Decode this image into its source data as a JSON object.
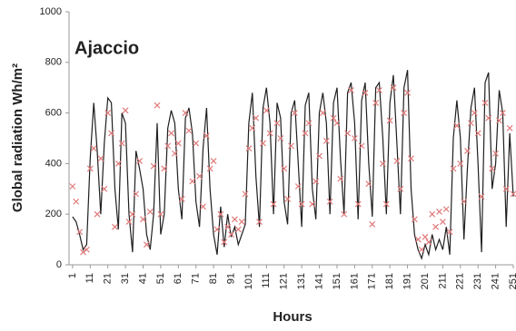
{
  "chart_data": {
    "type": "line",
    "title": "Ajaccio",
    "xlabel": "Hours",
    "ylabel": "Global radiation Wh/m²",
    "x": [
      1,
      3,
      5,
      7,
      9,
      11,
      13,
      15,
      17,
      19,
      21,
      23,
      25,
      27,
      29,
      31,
      33,
      35,
      37,
      39,
      41,
      43,
      45,
      47,
      49,
      51,
      53,
      55,
      57,
      59,
      61,
      63,
      65,
      67,
      69,
      71,
      73,
      75,
      77,
      79,
      81,
      83,
      85,
      87,
      89,
      91,
      93,
      95,
      97,
      99,
      101,
      103,
      105,
      107,
      109,
      111,
      113,
      115,
      117,
      119,
      121,
      123,
      125,
      127,
      129,
      131,
      133,
      135,
      137,
      139,
      141,
      143,
      145,
      147,
      149,
      151,
      153,
      155,
      157,
      159,
      161,
      163,
      165,
      167,
      169,
      171,
      173,
      175,
      177,
      179,
      181,
      183,
      185,
      187,
      189,
      191,
      193,
      195,
      197,
      199,
      201,
      203,
      205,
      207,
      209,
      211,
      213,
      215,
      217,
      219,
      221,
      223,
      225,
      227,
      229,
      231,
      233,
      235,
      237,
      239,
      241,
      243,
      245,
      247,
      249,
      251
    ],
    "series": [
      {
        "style": "line",
        "color": "#1f1f1f",
        "values": [
          190,
          170,
          120,
          60,
          80,
          420,
          640,
          450,
          200,
          480,
          660,
          640,
          300,
          140,
          600,
          560,
          200,
          50,
          450,
          380,
          300,
          120,
          60,
          200,
          560,
          120,
          200,
          540,
          610,
          560,
          300,
          180,
          580,
          620,
          520,
          250,
          150,
          460,
          620,
          300,
          120,
          40,
          230,
          70,
          200,
          110,
          150,
          80,
          120,
          160,
          560,
          680,
          350,
          150,
          620,
          700,
          560,
          200,
          640,
          580,
          250,
          160,
          600,
          650,
          400,
          150,
          630,
          680,
          300,
          180,
          600,
          680,
          560,
          200,
          640,
          700,
          420,
          200,
          680,
          720,
          560,
          180,
          650,
          720,
          400,
          190,
          700,
          720,
          500,
          200,
          640,
          750,
          480,
          200,
          700,
          770,
          300,
          120,
          60,
          25,
          80,
          40,
          120,
          60,
          100,
          60,
          150,
          40,
          500,
          650,
          500,
          100,
          380,
          620,
          700,
          400,
          50,
          720,
          760,
          300,
          400,
          690,
          600,
          150,
          520,
          270
        ]
      },
      {
        "style": "marker",
        "color": "#e07a7a",
        "values": [
          310,
          250,
          130,
          50,
          60,
          380,
          460,
          200,
          420,
          300,
          600,
          520,
          150,
          400,
          480,
          610,
          170,
          200,
          280,
          410,
          180,
          80,
          210,
          390,
          630,
          200,
          380,
          470,
          520,
          440,
          480,
          260,
          600,
          530,
          330,
          480,
          350,
          230,
          510,
          380,
          410,
          140,
          200,
          90,
          150,
          120,
          180,
          140,
          170,
          280,
          460,
          540,
          580,
          170,
          480,
          610,
          520,
          240,
          560,
          500,
          380,
          260,
          470,
          600,
          310,
          240,
          520,
          560,
          240,
          330,
          430,
          600,
          490,
          250,
          580,
          560,
          340,
          200,
          520,
          690,
          500,
          240,
          470,
          680,
          320,
          160,
          640,
          690,
          400,
          240,
          570,
          700,
          410,
          300,
          600,
          680,
          420,
          180,
          100,
          60,
          110,
          90,
          200,
          150,
          210,
          170,
          220,
          130,
          380,
          550,
          400,
          250,
          450,
          560,
          600,
          520,
          270,
          640,
          580,
          380,
          440,
          570,
          600,
          300,
          540,
          280
        ]
      }
    ],
    "xlim": [
      -1,
      251
    ],
    "xticks": [
      1,
      11,
      21,
      31,
      41,
      51,
      61,
      71,
      81,
      91,
      101,
      111,
      121,
      131,
      141,
      151,
      161,
      171,
      181,
      191,
      201,
      211,
      221,
      231,
      241,
      251
    ],
    "ylim": [
      0,
      1000
    ],
    "yticks": [
      0,
      200,
      400,
      600,
      800,
      1000
    ],
    "grid": false
  }
}
